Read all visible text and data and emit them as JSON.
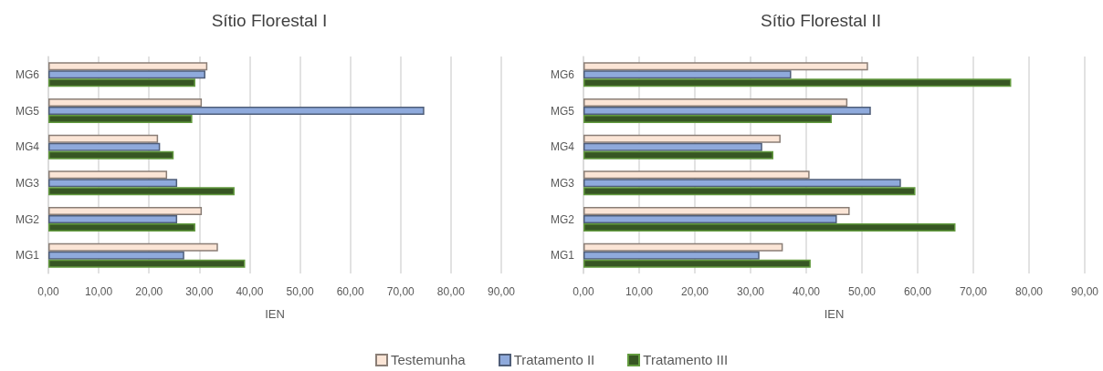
{
  "chart_data": [
    {
      "type": "bar",
      "orientation": "horizontal",
      "title": "Sítio Florestal I",
      "xlabel": "IEN",
      "categories": [
        "MG6",
        "MG5",
        "MG4",
        "MG3",
        "MG2",
        "MG1"
      ],
      "series": [
        {
          "name": "Testemunha",
          "color": "#fbe5d6",
          "values": [
            31.6,
            30.5,
            21.8,
            23.6,
            30.5,
            33.7
          ]
        },
        {
          "name": "Tratamento II",
          "color": "#8faadc",
          "values": [
            31.2,
            74.7,
            22.2,
            25.6,
            25.6,
            27.0
          ]
        },
        {
          "name": "Tratamento III",
          "color": "#375623",
          "values": [
            29.2,
            28.6,
            24.9,
            37.0,
            29.2,
            39.1
          ]
        }
      ],
      "xlim": [
        0,
        90
      ],
      "xticks": [
        {
          "value": 0,
          "label": "0,00"
        },
        {
          "value": 10,
          "label": "10,00"
        },
        {
          "value": 20,
          "label": "20,00"
        },
        {
          "value": 30,
          "label": "30,00"
        },
        {
          "value": 40,
          "label": "40,00"
        },
        {
          "value": 50,
          "label": "50,00"
        },
        {
          "value": 60,
          "label": "60,00"
        },
        {
          "value": 70,
          "label": "70,00"
        },
        {
          "value": 80,
          "label": "80,00"
        },
        {
          "value": 90,
          "label": "90,00"
        }
      ],
      "grid": "x",
      "legend": "bottom"
    },
    {
      "type": "bar",
      "orientation": "horizontal",
      "title": "Sítio Florestal II",
      "xlabel": "IEN",
      "categories": [
        "MG6",
        "MG5",
        "MG4",
        "MG3",
        "MG2",
        "MG1"
      ],
      "series": [
        {
          "name": "Testemunha",
          "color": "#fbe5d6",
          "values": [
            51.1,
            47.4,
            35.4,
            40.6,
            47.8,
            35.8
          ]
        },
        {
          "name": "Tratamento II",
          "color": "#8faadc",
          "values": [
            37.3,
            51.6,
            32.1,
            57.0,
            45.5,
            31.6
          ]
        },
        {
          "name": "Tratamento III",
          "color": "#375623",
          "values": [
            76.8,
            44.6,
            34.1,
            59.6,
            66.8,
            40.8
          ]
        }
      ],
      "xlim": [
        0,
        90
      ],
      "xticks": [
        {
          "value": 0,
          "label": "0,00"
        },
        {
          "value": 10,
          "label": "10,00"
        },
        {
          "value": 20,
          "label": "20,00"
        },
        {
          "value": 30,
          "label": "30,00"
        },
        {
          "value": 40,
          "label": "40,00"
        },
        {
          "value": 50,
          "label": "50,00"
        },
        {
          "value": 60,
          "label": "60,00"
        },
        {
          "value": 70,
          "label": "70,00"
        },
        {
          "value": 80,
          "label": "80,00"
        },
        {
          "value": 90,
          "label": "90,00"
        }
      ],
      "grid": "x",
      "legend": false
    }
  ]
}
